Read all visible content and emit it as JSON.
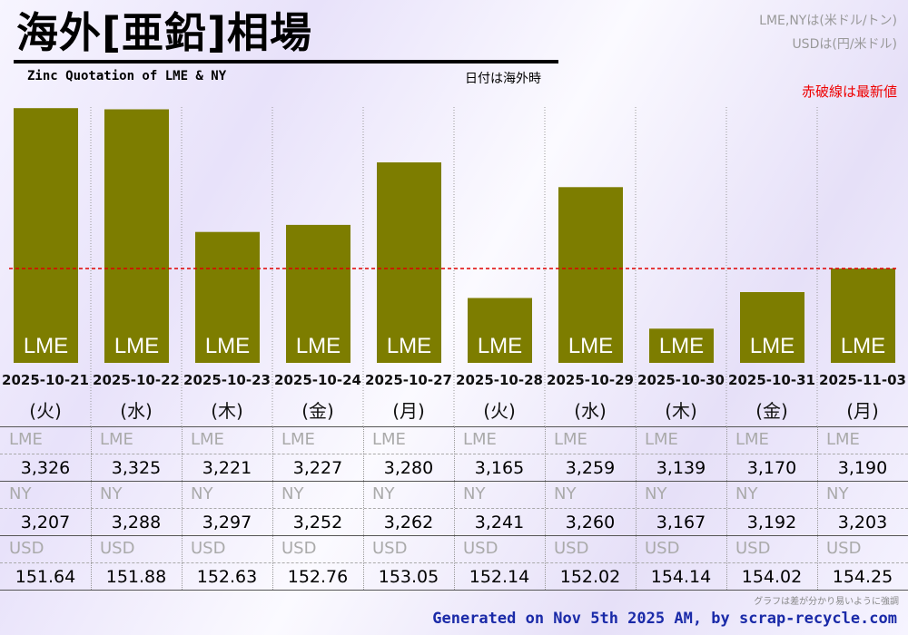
{
  "header": {
    "title": "海外[亜鉛]相場",
    "subtitle": "Zinc Quotation of LME & NY",
    "date_note": "日付は海外時",
    "unit_lme_ny": "LME,NYは(米ドル/トン)",
    "unit_usd": "USDは(円/米ドル)",
    "red_line_note": "赤破線は最新値"
  },
  "colors": {
    "bar": "#7d7d00",
    "bar_label": "#ffffff",
    "latest_line": "#e00000",
    "footer_text": "#1a2aa8"
  },
  "chart_data": {
    "type": "bar",
    "title": "海外[亜鉛]相場",
    "series_name": "LME",
    "categories": [
      "2025-10-21",
      "2025-10-22",
      "2025-10-23",
      "2025-10-24",
      "2025-10-27",
      "2025-10-28",
      "2025-10-29",
      "2025-10-30",
      "2025-10-31",
      "2025-11-03"
    ],
    "weekdays": [
      "(火)",
      "(水)",
      "(木)",
      "(金)",
      "(月)",
      "(火)",
      "(水)",
      "(木)",
      "(金)",
      "(月)"
    ],
    "values": [
      3326,
      3325,
      3221,
      3227,
      3280,
      3165,
      3259,
      3139,
      3170,
      3190
    ],
    "bar_label": "LME",
    "ylim": [
      3110,
      3330
    ],
    "latest_value": 3190,
    "latest_line_style": "dashed-red",
    "note": "グラフは差が分かり易いように強調"
  },
  "table": {
    "rows": [
      {
        "label": "LME",
        "values": [
          "3,326",
          "3,325",
          "3,221",
          "3,227",
          "3,280",
          "3,165",
          "3,259",
          "3,139",
          "3,170",
          "3,190"
        ]
      },
      {
        "label": "NY",
        "values": [
          "3,207",
          "3,288",
          "3,297",
          "3,252",
          "3,262",
          "3,241",
          "3,260",
          "3,167",
          "3,192",
          "3,203"
        ]
      },
      {
        "label": "USD",
        "values": [
          "151.64",
          "151.88",
          "152.63",
          "152.76",
          "153.05",
          "152.14",
          "152.02",
          "154.14",
          "154.02",
          "154.25"
        ]
      }
    ]
  },
  "footer": {
    "emphasis_note": "グラフは差が分かり易いように強調",
    "generated": "Generated on Nov 5th 2025 AM, by scrap-recycle.com"
  }
}
